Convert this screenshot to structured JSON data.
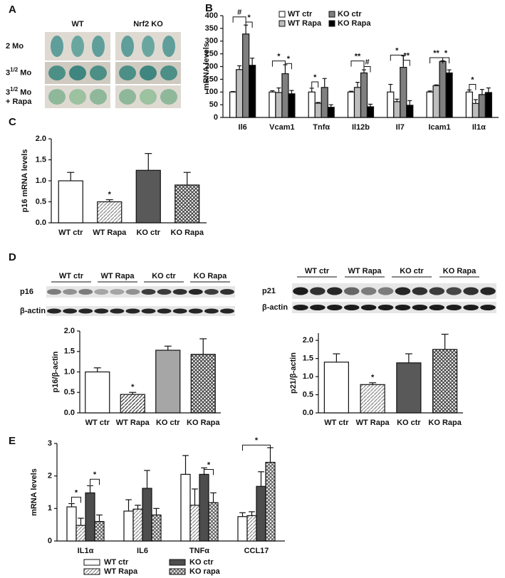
{
  "panel_labels": [
    "A",
    "B",
    "C",
    "D",
    "E"
  ],
  "panel_a": {
    "columns": [
      "WT",
      "Nrf2 KO"
    ],
    "rows": [
      [
        "2 Mo"
      ],
      [
        "3",
        "1/2",
        " Mo"
      ],
      [
        "3",
        "1/2",
        " Mo",
        "+ Rapa"
      ]
    ]
  },
  "blots": [
    {
      "lanes": [
        "WT ctr",
        "WT Rapa",
        "KO ctr",
        "KO Rapa"
      ],
      "bands": [
        "p16",
        "β-actin"
      ]
    },
    {
      "lanes": [
        "WT ctr",
        "WT Rapa",
        "KO ctr",
        "KO Rapa"
      ],
      "bands": [
        "p21",
        "β-actin"
      ]
    }
  ],
  "chart_data": [
    {
      "type": "bar",
      "ylabel": "mRNA levels",
      "categories": [
        "Il6",
        "Vcam1",
        "Tnfα",
        "Il12b",
        "Il7",
        "Icam1",
        "Il1α"
      ],
      "series": [
        {
          "name": "WT ctr",
          "color": "#ffffff",
          "fill": "solid",
          "values": [
            100,
            100,
            100,
            100,
            100,
            100,
            100
          ],
          "errors": [
            2,
            5,
            15,
            3,
            30,
            4,
            8
          ]
        },
        {
          "name": "WT Rapa",
          "color": "#bdbdbd",
          "fill": "solid",
          "values": [
            188,
            98,
            56,
            118,
            62,
            125,
            55
          ],
          "errors": [
            15,
            18,
            3,
            20,
            10,
            3,
            15
          ]
        },
        {
          "name": "KO ctr",
          "color": "#7f7f7f",
          "fill": "solid",
          "values": [
            328,
            172,
            118,
            175,
            197,
            220,
            90
          ],
          "errors": [
            35,
            35,
            35,
            12,
            45,
            3,
            20
          ]
        },
        {
          "name": "KO Rapa",
          "color": "#000000",
          "fill": "solid",
          "values": [
            205,
            93,
            40,
            42,
            48,
            175,
            98
          ],
          "errors": [
            28,
            13,
            10,
            10,
            18,
            12,
            18
          ]
        }
      ],
      "ylim": [
        0,
        400
      ],
      "yticks": [
        0,
        50,
        100,
        150,
        200,
        250,
        300,
        350,
        400
      ],
      "annotations": [
        "#",
        "*",
        "*",
        "*",
        "*",
        "**",
        "#",
        "*",
        "**",
        "**",
        "*",
        "*"
      ]
    },
    {
      "type": "bar",
      "ylabel": "p16 mRNA levels",
      "categories": [
        "WT ctr",
        "WT Rapa",
        "KO ctr",
        "KO Rapa"
      ],
      "values": [
        1.0,
        0.5,
        1.25,
        0.9
      ],
      "errors": [
        0.2,
        0.05,
        0.4,
        0.3
      ],
      "colors": [
        "#ffffff",
        "#8c8c8c",
        "#595959",
        "#404040"
      ],
      "fills": [
        "solid",
        "hatch",
        "solid",
        "crosshatch"
      ],
      "ylim": [
        0,
        2
      ],
      "yticks": [
        {
          "value": 0,
          "label": "0.0"
        },
        0.5,
        {
          "value": 1,
          "label": "1.0"
        },
        1.5,
        {
          "value": 2,
          "label": "2.0"
        }
      ],
      "annotations": [
        "*"
      ]
    },
    {
      "type": "bar",
      "ylabel": "p16/β-actin",
      "categories": [
        "WT ctr",
        "WT Rapa",
        "KO ctr",
        "KO Rapa"
      ],
      "values": [
        1.0,
        0.45,
        1.53,
        1.43
      ],
      "errors": [
        0.1,
        0.05,
        0.1,
        0.38
      ],
      "colors": [
        "#ffffff",
        "#404040",
        "#a6a6a6",
        "#404040"
      ],
      "fills": [
        "solid",
        "hatch",
        "solid",
        "crosshatch"
      ],
      "ylim": [
        0,
        2
      ],
      "yticks": [
        {
          "value": 0,
          "label": "0.0"
        },
        0.5,
        {
          "value": 1,
          "label": "1.0"
        },
        1.5,
        {
          "value": 2,
          "label": "2.0"
        }
      ],
      "annotations": [
        "*"
      ]
    },
    {
      "type": "bar",
      "ylabel": "p21/β-actin",
      "categories": [
        "WT ctr",
        "WT Rapa",
        "KO ctr",
        "KO Rapa"
      ],
      "values": [
        1.4,
        0.78,
        1.38,
        1.75
      ],
      "errors": [
        0.23,
        0.05,
        0.25,
        0.42
      ],
      "colors": [
        "#ffffff",
        "#8c8c8c",
        "#595959",
        "#404040"
      ],
      "fills": [
        "solid",
        "hatch",
        "solid",
        "crosshatch"
      ],
      "ylim": [
        0,
        2.2
      ],
      "yticks": [
        {
          "value": 0,
          "label": "0.0"
        },
        0.5,
        {
          "value": 1,
          "label": "1.0"
        },
        1.5,
        {
          "value": 2,
          "label": "2.0"
        }
      ],
      "annotations": [
        "*"
      ]
    },
    {
      "type": "bar",
      "ylabel": "mRNA levels",
      "categories": [
        "IL1α",
        "IL6",
        "TNFα",
        "CCL17"
      ],
      "series": [
        {
          "name": "WT ctr",
          "color": "#ffffff",
          "fill": "solid",
          "values": [
            1.05,
            0.92,
            2.05,
            0.75
          ],
          "errors": [
            0.1,
            0.35,
            0.58,
            0.12
          ]
        },
        {
          "name": "WT Rapa",
          "color": "#8c8c8c",
          "fill": "hatch",
          "values": [
            0.48,
            0.98,
            1.1,
            0.78
          ],
          "errors": [
            0.22,
            0.12,
            0.5,
            0.12
          ]
        },
        {
          "name": "KO ctr",
          "color": "#4d4d4d",
          "fill": "solid",
          "values": [
            1.48,
            1.62,
            2.05,
            1.68
          ],
          "errors": [
            0.22,
            0.55,
            0.2,
            0.45
          ]
        },
        {
          "name": "KO rapa",
          "color": "#595959",
          "fill": "crosshatch",
          "values": [
            0.6,
            0.8,
            1.18,
            2.42
          ],
          "errors": [
            0.2,
            0.2,
            0.3,
            0.45
          ]
        }
      ],
      "ylim": [
        0,
        3
      ],
      "yticks": [
        0,
        1,
        2,
        3
      ],
      "annotations": [
        "*",
        "*",
        "*",
        "*"
      ]
    }
  ]
}
